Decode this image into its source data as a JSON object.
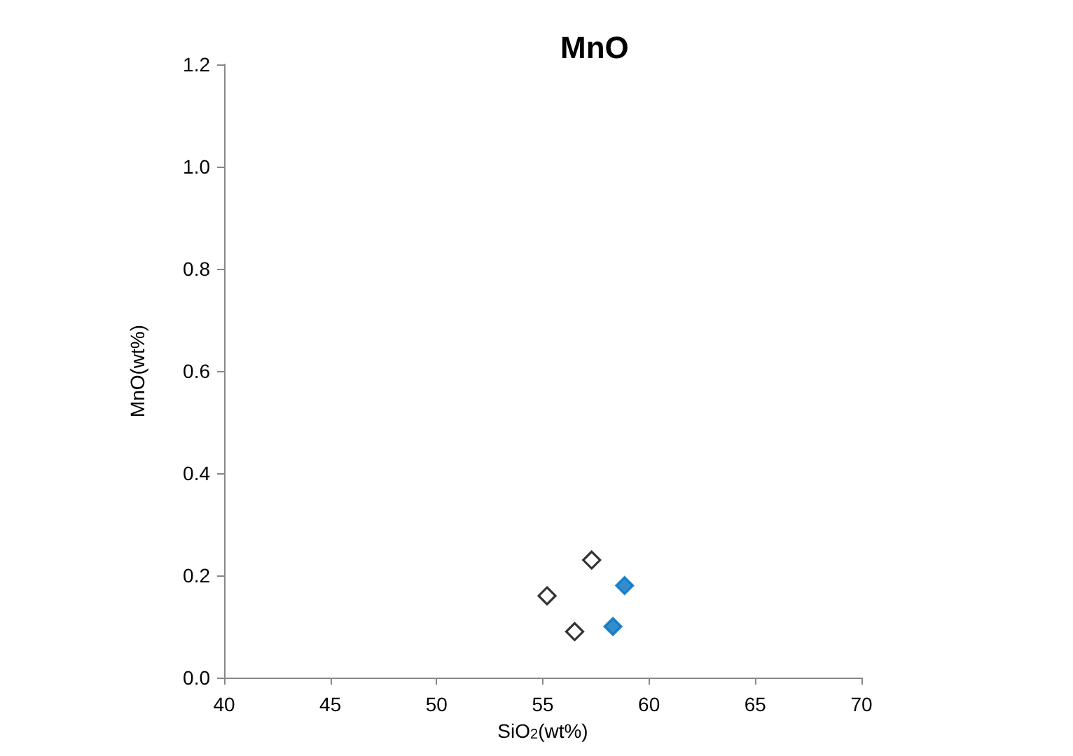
{
  "chart_data": {
    "type": "scatter",
    "title": "MnO",
    "xlabel": "SiO$_{2}$(wt%)",
    "ylabel": "MnO(wt%)",
    "series": [
      {
        "color": "#ffffff",
        "x": [
          55.2,
          57.3,
          56.5
        ],
        "values": [
          0.16,
          0.23,
          0.09
        ]
      },
      {
        "color": "#0070c0",
        "x": [
          58.85,
          58.3
        ],
        "values": [
          0.18,
          0.1
        ]
      }
    ],
    "xlim": [
      40,
      70
    ],
    "xticks": [
      40,
      45,
      50,
      55,
      60,
      65,
      70
    ],
    "ylim": [
      0,
      1.2
    ],
    "yticks": [
      {
        "value": 0,
        "label": "0.0"
      },
      0.2,
      0.4,
      0.6,
      0.8,
      {
        "value": 1,
        "label": "1.0"
      },
      1.2
    ],
    "grid": false,
    "marker": "diamond"
  }
}
